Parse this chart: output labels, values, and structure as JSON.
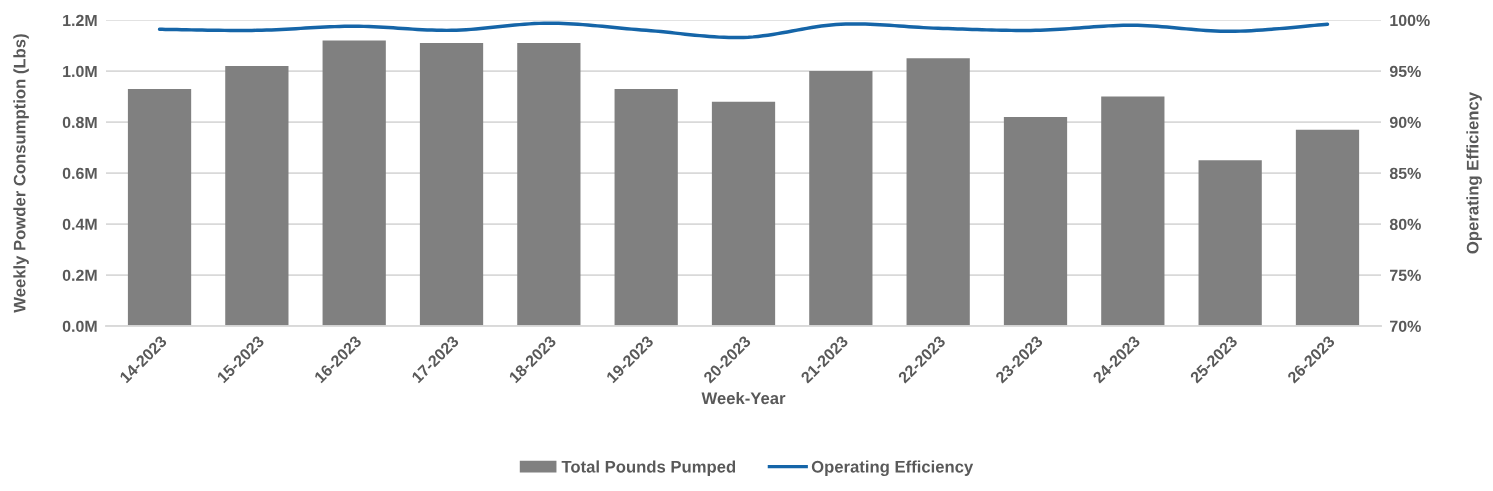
{
  "chart_data": {
    "type": "bar",
    "xlabel": "Week-Year",
    "ylabel": "Weekly Powder Consumption (Lbs)",
    "y2label": "Operating Efficiency",
    "categories": [
      "14-2023",
      "15-2023",
      "16-2023",
      "17-2023",
      "18-2023",
      "19-2023",
      "20-2023",
      "21-2023",
      "22-2023",
      "23-2023",
      "24-2023",
      "25-2023",
      "26-2023"
    ],
    "series": [
      {
        "name": "Total Pounds Pumped",
        "color": "#808080",
        "values": [
          0.93,
          1.02,
          1.12,
          1.11,
          1.11,
          0.93,
          0.88,
          1.0,
          1.05,
          0.82,
          0.9,
          0.65,
          0.77
        ]
      },
      {
        "name": "Operating Efficiency",
        "type": "line",
        "axis": "y2",
        "color": "#1565a8",
        "values": [
          99.1,
          99.0,
          99.4,
          99.0,
          99.7,
          99.0,
          98.3,
          99.6,
          99.2,
          99.0,
          99.5,
          98.9,
          99.6
        ]
      }
    ],
    "ylim": [
      0,
      1.2
    ],
    "yticks": [
      {
        "value": 0,
        "label": "0.0M"
      },
      {
        "value": 0.2,
        "label": "0.2M"
      },
      {
        "value": 0.4,
        "label": "0.4M"
      },
      {
        "value": 0.6,
        "label": "0.6M"
      },
      {
        "value": 0.8,
        "label": "0.8M"
      },
      {
        "value": 1.0,
        "label": "1.0M"
      },
      {
        "value": 1.2,
        "label": "1.2M"
      }
    ],
    "y2lim": [
      70,
      100
    ],
    "y2ticks": [
      {
        "value": 70,
        "label": "70%"
      },
      {
        "value": 75,
        "label": "75%"
      },
      {
        "value": 80,
        "label": "80%"
      },
      {
        "value": 85,
        "label": "85%"
      },
      {
        "value": 90,
        "label": "90%"
      },
      {
        "value": 95,
        "label": "95%"
      },
      {
        "value": 100,
        "label": "100%"
      }
    ],
    "grid": "y",
    "legend": "bottom"
  }
}
